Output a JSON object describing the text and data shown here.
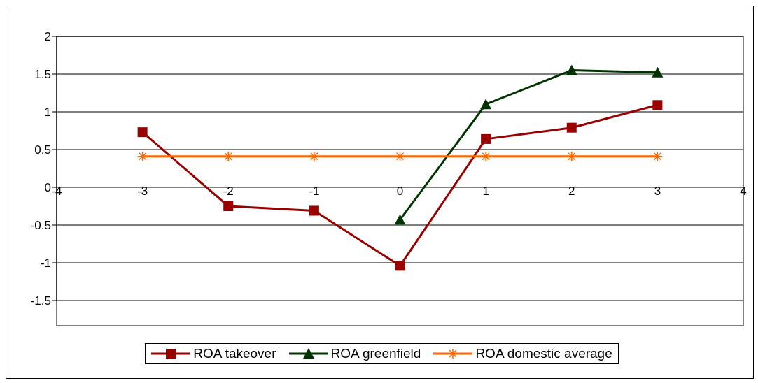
{
  "chart_data": {
    "type": "line",
    "x": [
      -3,
      -2,
      -1,
      0,
      1,
      2,
      3
    ],
    "series": [
      {
        "name": "ROA takeover",
        "color": "#990000",
        "marker": "square",
        "values": [
          0.73,
          -0.25,
          -0.31,
          -1.04,
          0.64,
          0.79,
          1.09
        ]
      },
      {
        "name": "ROA greenfield",
        "color": "#003300",
        "marker": "triangle",
        "values": [
          null,
          null,
          null,
          -0.43,
          1.1,
          1.55,
          1.52
        ]
      },
      {
        "name": "ROA domestic average",
        "color": "#ff6600",
        "marker": "cross",
        "values": [
          0.41,
          0.41,
          0.41,
          0.41,
          0.41,
          0.41,
          0.41
        ]
      }
    ],
    "xlim": [
      -4,
      4
    ],
    "xticks": [
      -4,
      -3,
      -2,
      -1,
      0,
      1,
      2,
      3,
      4
    ],
    "ylim": [
      -1.5,
      2
    ],
    "yticks": [
      -1.5,
      -1,
      -0.5,
      0,
      0.5,
      1,
      1.5,
      2
    ],
    "grid": "y",
    "legend": "bottom"
  }
}
